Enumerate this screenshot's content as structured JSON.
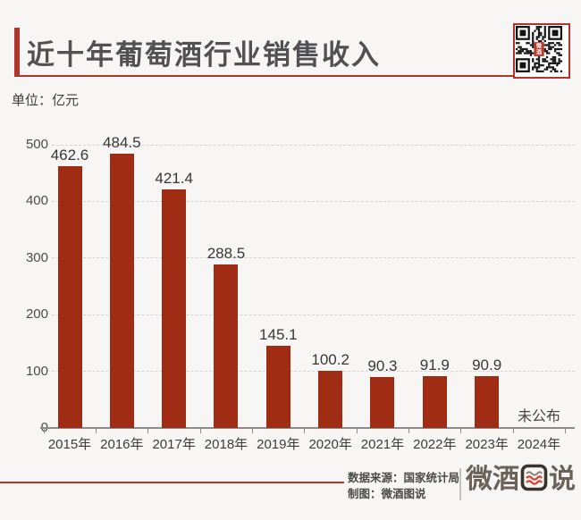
{
  "colors": {
    "background": "#f7f6f4",
    "accent_red": "#b2352c",
    "bar": "#a02d13",
    "title_text": "#515154",
    "qr_center_red": "#c0392b"
  },
  "header": {
    "title": "近十年葡萄酒行业销售收入",
    "unit_label": "单位：亿元",
    "qr_center_label": "微酒"
  },
  "chart_data": {
    "type": "bar",
    "title": "近十年葡萄酒行业销售收入",
    "unit": "亿元",
    "categories": [
      "2015年",
      "2016年",
      "2017年",
      "2018年",
      "2019年",
      "2020年",
      "2021年",
      "2022年",
      "2023年",
      "2024年"
    ],
    "values": [
      462.6,
      484.5,
      421.4,
      288.5,
      145.1,
      100.2,
      90.3,
      91.9,
      90.9,
      null
    ],
    "value_labels": [
      "462.6",
      "484.5",
      "421.4",
      "288.5",
      "145.1",
      "100.2",
      "90.3",
      "91.9",
      "90.9",
      "未公布"
    ],
    "missing_value_label": "未公布",
    "ylim": [
      0,
      500
    ],
    "yticks": [
      0,
      100,
      200,
      300,
      400,
      500
    ],
    "grid": "horizontal-dashed",
    "legend": "none",
    "bar_color": "#a02d13"
  },
  "footer": {
    "source_label": "数据来源：国家统计局",
    "credit_label": "制图：微酒图说",
    "logo_text": "微酒图说"
  }
}
